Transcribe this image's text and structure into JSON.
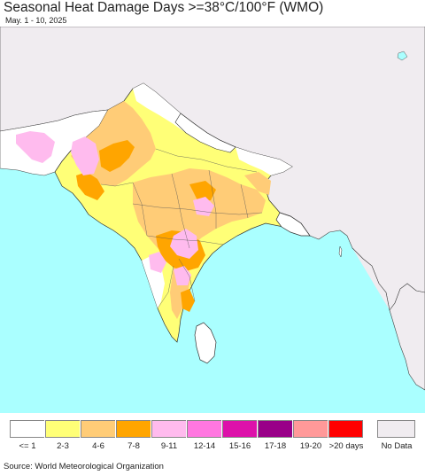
{
  "title": "Seasonal Heat Damage Days >=38°C/100°F (WMO)",
  "subtitle": "May. 1 - 10, 2025",
  "source": "Source: World Meteorological Organization",
  "colors": {
    "ocean": "#aaffff",
    "land_no_data": "#f0ecf0",
    "boundary": "#222222"
  },
  "legend": {
    "items": [
      {
        "label": "<= 1",
        "color": "#ffffff"
      },
      {
        "label": "2-3",
        "color": "#ffff77"
      },
      {
        "label": "4-6",
        "color": "#ffcc77"
      },
      {
        "label": "7-8",
        "color": "#ffa500"
      },
      {
        "label": "9-11",
        "color": "#ffbbee"
      },
      {
        "label": "12-14",
        "color": "#ff77e0"
      },
      {
        "label": "15-16",
        "color": "#dd11aa"
      },
      {
        "label": "17-18",
        "color": "#990088"
      },
      {
        "label": "19-20",
        "color": "#ff9999"
      },
      {
        "label": ">20 days",
        "color": "#ff0000"
      }
    ],
    "no_data": {
      "label": "No Data",
      "color": "#f0ecf0"
    }
  }
}
